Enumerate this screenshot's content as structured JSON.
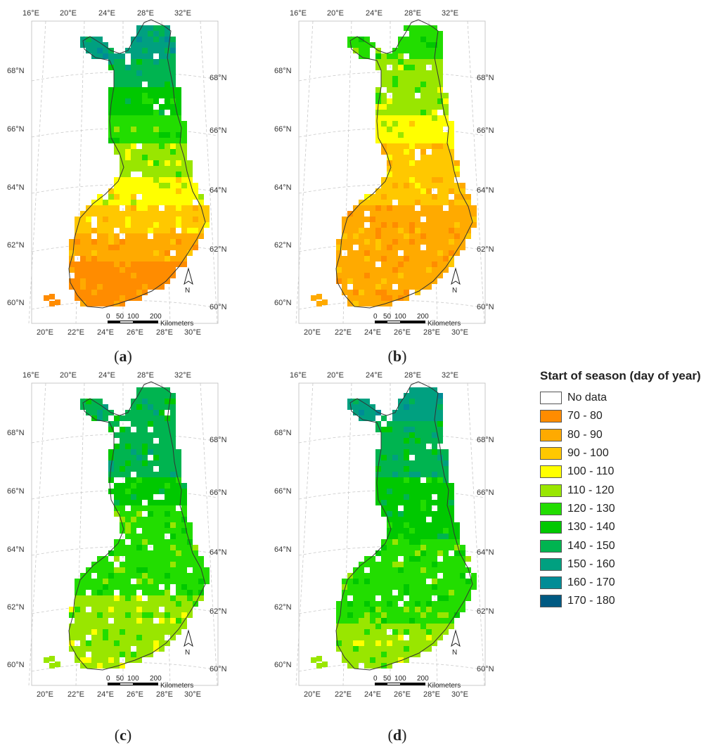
{
  "panels": [
    {
      "label": "a",
      "classes": [
        9,
        8,
        7,
        6,
        5,
        4,
        3,
        2,
        1,
        1
      ]
    },
    {
      "label": "b",
      "classes": [
        6,
        5,
        5,
        4,
        3,
        3,
        2,
        2,
        2,
        2
      ]
    },
    {
      "label": "c",
      "classes": [
        8,
        8,
        8,
        7,
        6,
        6,
        6,
        5,
        5,
        5
      ]
    },
    {
      "label": "d",
      "classes": [
        9,
        8,
        8,
        7,
        7,
        6,
        6,
        6,
        5,
        5
      ]
    }
  ],
  "lon_ticks_top": [
    "16°E",
    "20°E",
    "24°E",
    "28°E",
    "32°E"
  ],
  "lon_ticks_bottom": [
    "20°E",
    "22°E",
    "24°E",
    "26°E",
    "28°E",
    "30°E"
  ],
  "lat_ticks_left": [
    "68°N",
    "66°N",
    "64°N",
    "62°N",
    "60°N"
  ],
  "lat_ticks_right": [
    "68°N",
    "66°N",
    "64°N",
    "62°N",
    "60°N"
  ],
  "scale_bar": {
    "ticks": [
      "0",
      "50",
      "100",
      "200"
    ],
    "unit": "Kilometers"
  },
  "north_arrow": "N",
  "legend": {
    "title": "Start of season (day of year)",
    "items": [
      {
        "label": "No data",
        "color": "#ffffff"
      },
      {
        "label": "70 - 80",
        "color": "#ff8c00"
      },
      {
        "label": "80 - 90",
        "color": "#ffaa00"
      },
      {
        "label": "90 - 100",
        "color": "#ffc800"
      },
      {
        "label": "100 - 110",
        "color": "#ffff00"
      },
      {
        "label": "110 - 120",
        "color": "#99e600"
      },
      {
        "label": "120 - 130",
        "color": "#22dd00"
      },
      {
        "label": "130 - 140",
        "color": "#00c800"
      },
      {
        "label": "140 - 150",
        "color": "#00b450"
      },
      {
        "label": "150 - 160",
        "color": "#00a080"
      },
      {
        "label": "160 - 170",
        "color": "#008c96"
      },
      {
        "label": "170 - 180",
        "color": "#005a82"
      }
    ]
  }
}
